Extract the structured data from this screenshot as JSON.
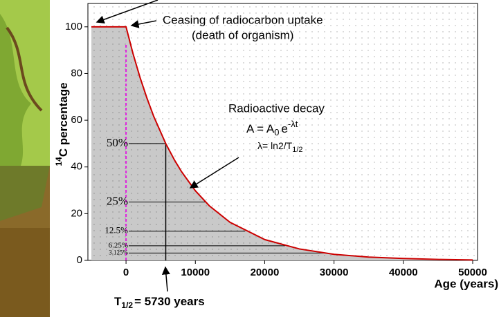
{
  "chart_data": {
    "type": "line",
    "x": [
      -5000,
      0,
      1000,
      2000,
      3000,
      4000,
      5730,
      7000,
      8000,
      10000,
      12000,
      15000,
      20000,
      25000,
      30000,
      35000,
      40000,
      45000,
      50000
    ],
    "values": [
      100,
      100,
      88.6,
      78.5,
      69.6,
      61.6,
      50,
      42.9,
      38.0,
      29.8,
      23.4,
      16.3,
      8.9,
      4.9,
      2.6,
      1.4,
      0.8,
      0.4,
      0.2
    ],
    "color": "#cc0000",
    "xlim": [
      -5500,
      50700
    ],
    "ylim": [
      0,
      110
    ],
    "xticks": [
      0,
      10000,
      20000,
      30000,
      40000,
      50000
    ],
    "yticks": [
      0,
      20,
      40,
      60,
      80,
      100
    ],
    "grid": true,
    "x_label": "Age (years)",
    "y_label": {
      "superscript": "14",
      "text": "C percentage"
    },
    "levels": [
      {
        "value": 50,
        "label": "50%"
      },
      {
        "value": 25,
        "label": "25%"
      },
      {
        "value": 12.5,
        "label": "12.5%"
      },
      {
        "value": 6.25,
        "label": "6.25%"
      },
      {
        "value": 3.125,
        "label": "3.125%"
      }
    ],
    "half_life": 5730,
    "annotations": {
      "uptake": "Ceasing of radiocarbon uptake",
      "death": "(death of organism)",
      "decay": "Radioactive decay",
      "formula": {
        "a": "A = A",
        "sub": "0",
        "e": "e",
        "exp": "-λt"
      },
      "lambda": {
        "text": "λ= ln2/T",
        "sub": "1/2"
      },
      "half_life": {
        "t": "T",
        "sub": "1/2",
        "text": "= 5730 years"
      }
    }
  }
}
